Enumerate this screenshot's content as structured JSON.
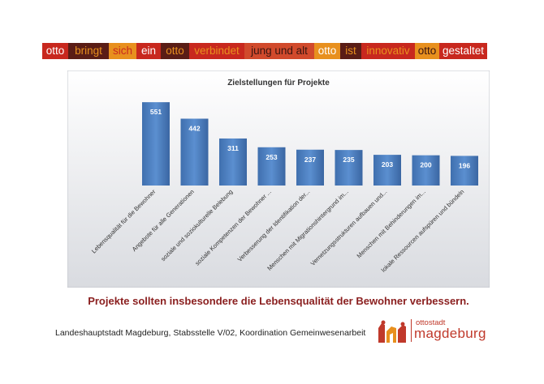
{
  "banner": [
    {
      "text": "otto",
      "bg": "#c8281e",
      "fg": "#ffffff"
    },
    {
      "text": "bringt",
      "bg": "#5a1d16",
      "fg": "#e8901e"
    },
    {
      "text": "sich",
      "bg": "#e8901e",
      "fg": "#c8281e"
    },
    {
      "text": "ein",
      "bg": "#c8281e",
      "fg": "#ffffff"
    },
    {
      "text": "otto",
      "bg": "#5a1d16",
      "fg": "#e8901e"
    },
    {
      "text": "verbindet",
      "bg": "#c8281e",
      "fg": "#e8901e"
    },
    {
      "text": "jung und alt",
      "bg": "#d14a2c",
      "fg": "#3a1510"
    },
    {
      "text": "otto",
      "bg": "#e8901e",
      "fg": "#ffffff"
    },
    {
      "text": "ist",
      "bg": "#5a1d16",
      "fg": "#e8901e"
    },
    {
      "text": "innovativ",
      "bg": "#c8281e",
      "fg": "#e8901e"
    },
    {
      "text": "otto",
      "bg": "#e8901e",
      "fg": "#3a1510"
    },
    {
      "text": "gestaltet",
      "bg": "#c8281e",
      "fg": "#ffffff"
    }
  ],
  "chart_data": {
    "type": "bar",
    "title": "Zielstellungen für Projekte",
    "categories": [
      "Lebensqualität für die Bewohner",
      "Angebote für alle Generationen",
      "soziale und soziokulturelle Belebung",
      "soziale Kompetenzen der Bewohner ...",
      "Verbesserung der Identifikation der...",
      "Menschen mit Migrationshintergrund im...",
      "Vernetzungsstrukturen aufbauen und...",
      "Menschen mit Behinderungen im...",
      "lokale Ressourcen aufspüren und bündeln"
    ],
    "values": [
      551,
      442,
      311,
      253,
      237,
      235,
      203,
      200,
      196
    ],
    "ylim": [
      0,
      600
    ],
    "grid": false,
    "legend": "none",
    "bar_color": "#4a7ebb"
  },
  "caption": "Projekte sollten insbesondere die Lebensqualität der Bewohner verbessern.",
  "footer": "Landeshauptstadt Magdeburg, Stabsstelle V/02, Koordination Gemeinwesenarbeit",
  "logo": {
    "small": "ottostadt",
    "big": "magdeburg",
    "color": "#c0392b"
  }
}
